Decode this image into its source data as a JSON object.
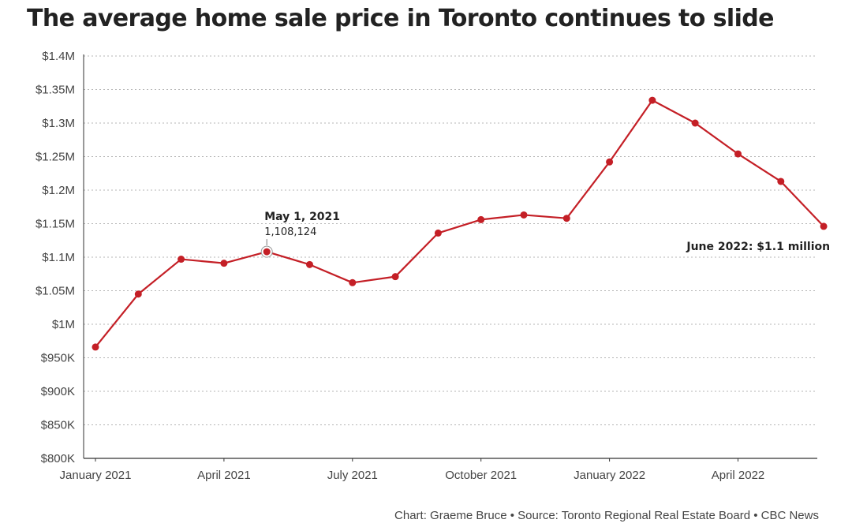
{
  "chart_data": {
    "type": "line",
    "title": "The average home sale price in Toronto continues to slide",
    "xlabel": "",
    "ylabel": "",
    "ylim": [
      800000,
      1400000
    ],
    "y_ticks": [
      800000,
      850000,
      900000,
      950000,
      1000000,
      1050000,
      1100000,
      1150000,
      1200000,
      1250000,
      1300000,
      1350000,
      1400000
    ],
    "y_tick_labels": [
      "$800K",
      "$850K",
      "$900K",
      "$950K",
      "$1M",
      "$1.05M",
      "$1.1M",
      "$1.15M",
      "$1.2M",
      "$1.25M",
      "$1.3M",
      "$1.35M",
      "$1.4M"
    ],
    "x_tick_labels": [
      "January 2021",
      "April 2021",
      "July 2021",
      "October 2021",
      "January 2022",
      "April 2022"
    ],
    "x_tick_indices": [
      0,
      3,
      6,
      9,
      12,
      15
    ],
    "grid": true,
    "line_color": "#c41f26",
    "series": [
      {
        "name": "Average home sale price",
        "x": [
          "2021-01",
          "2021-02",
          "2021-03",
          "2021-04",
          "2021-05",
          "2021-06",
          "2021-07",
          "2021-08",
          "2021-09",
          "2021-10",
          "2021-11",
          "2021-12",
          "2022-01",
          "2022-02",
          "2022-03",
          "2022-04",
          "2022-05",
          "2022-06"
        ],
        "values": [
          966000,
          1045000,
          1097000,
          1091000,
          1108124,
          1089000,
          1062000,
          1071000,
          1136000,
          1156000,
          1163000,
          1158000,
          1242000,
          1334000,
          1300000,
          1254000,
          1213000,
          1146000
        ]
      }
    ],
    "annotations": [
      {
        "index": 4,
        "title": "May 1, 2021",
        "value": "1,108,124"
      },
      {
        "index": 17,
        "title": "June 2022: $1.1 million",
        "value": ""
      }
    ]
  },
  "footer": {
    "credit": "Chart: Graeme Bruce • Source: Toronto Regional Real Estate Board • CBC News"
  }
}
